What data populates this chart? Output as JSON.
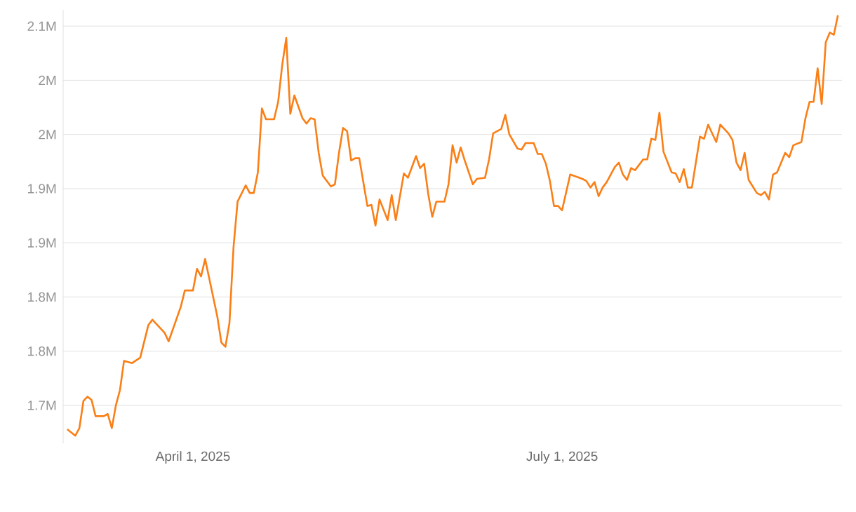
{
  "chart_data": {
    "type": "line",
    "color": "#fa7f16",
    "grid": "y",
    "xlim": [
      "2025-02-28",
      "2025-09-08"
    ],
    "ylim": [
      1.715,
      2.115
    ],
    "xticks": [
      {
        "value": "2025-04-01",
        "label": "April 1, 2025"
      },
      {
        "value": "2025-07-01",
        "label": "July 1, 2025"
      }
    ],
    "yticks": [
      {
        "value": 1.75,
        "label": "1.7M"
      },
      {
        "value": 1.8,
        "label": "1.8M"
      },
      {
        "value": 1.85,
        "label": "1.8M"
      },
      {
        "value": 1.9,
        "label": "1.9M"
      },
      {
        "value": 1.95,
        "label": "1.9M"
      },
      {
        "value": 2.0,
        "label": "2M"
      },
      {
        "value": 2.05,
        "label": "2M"
      },
      {
        "value": 2.1,
        "label": "2.1M"
      }
    ],
    "x": [
      "2025-03-01",
      "2025-03-03",
      "2025-03-04",
      "2025-03-05",
      "2025-03-06",
      "2025-03-07",
      "2025-03-08",
      "2025-03-10",
      "2025-03-11",
      "2025-03-12",
      "2025-03-13",
      "2025-03-14",
      "2025-03-15",
      "2025-03-17",
      "2025-03-19",
      "2025-03-21",
      "2025-03-22",
      "2025-03-25",
      "2025-03-26",
      "2025-03-29",
      "2025-03-30",
      "2025-04-01",
      "2025-04-02",
      "2025-04-03",
      "2025-04-04",
      "2025-04-07",
      "2025-04-08",
      "2025-04-09",
      "2025-04-10",
      "2025-04-11",
      "2025-04-12",
      "2025-04-14",
      "2025-04-15",
      "2025-04-16",
      "2025-04-17",
      "2025-04-18",
      "2025-04-19",
      "2025-04-21",
      "2025-04-22",
      "2025-04-23",
      "2025-04-24",
      "2025-04-25",
      "2025-04-26",
      "2025-04-28",
      "2025-04-29",
      "2025-04-30",
      "2025-05-01",
      "2025-05-02",
      "2025-05-03",
      "2025-05-05",
      "2025-05-06",
      "2025-05-07",
      "2025-05-08",
      "2025-05-09",
      "2025-05-10",
      "2025-05-11",
      "2025-05-12",
      "2025-05-14",
      "2025-05-15",
      "2025-05-16",
      "2025-05-17",
      "2025-05-19",
      "2025-05-20",
      "2025-05-21",
      "2025-05-23",
      "2025-05-24",
      "2025-05-26",
      "2025-05-27",
      "2025-05-28",
      "2025-05-29",
      "2025-05-30",
      "2025-05-31",
      "2025-06-02",
      "2025-06-03",
      "2025-06-04",
      "2025-06-05",
      "2025-06-06",
      "2025-06-07",
      "2025-06-09",
      "2025-06-10",
      "2025-06-12",
      "2025-06-13",
      "2025-06-14",
      "2025-06-16",
      "2025-06-17",
      "2025-06-18",
      "2025-06-20",
      "2025-06-21",
      "2025-06-22",
      "2025-06-24",
      "2025-06-25",
      "2025-06-26",
      "2025-06-27",
      "2025-06-28",
      "2025-06-29",
      "2025-06-30",
      "2025-07-01",
      "2025-07-03",
      "2025-07-06",
      "2025-07-07",
      "2025-07-08",
      "2025-07-09",
      "2025-07-10",
      "2025-07-11",
      "2025-07-12",
      "2025-07-14",
      "2025-07-15",
      "2025-07-16",
      "2025-07-17",
      "2025-07-18",
      "2025-07-19",
      "2025-07-21",
      "2025-07-22",
      "2025-07-23",
      "2025-07-24",
      "2025-07-25",
      "2025-07-26",
      "2025-07-28",
      "2025-07-29",
      "2025-07-30",
      "2025-07-31",
      "2025-08-01",
      "2025-08-02",
      "2025-08-04",
      "2025-08-05",
      "2025-08-06",
      "2025-08-08",
      "2025-08-09",
      "2025-08-11",
      "2025-08-12",
      "2025-08-13",
      "2025-08-14",
      "2025-08-15",
      "2025-08-16",
      "2025-08-18",
      "2025-08-19",
      "2025-08-20",
      "2025-08-21",
      "2025-08-22",
      "2025-08-23",
      "2025-08-25",
      "2025-08-26",
      "2025-08-27",
      "2025-08-29",
      "2025-08-30",
      "2025-08-31",
      "2025-09-01",
      "2025-09-02",
      "2025-09-03",
      "2025-09-04",
      "2025-09-05",
      "2025-09-06",
      "2025-09-07"
    ],
    "values": [
      1.728,
      1.722,
      1.729,
      1.754,
      1.758,
      1.755,
      1.74,
      1.74,
      1.742,
      1.729,
      1.75,
      1.764,
      1.791,
      1.789,
      1.794,
      1.824,
      1.829,
      1.817,
      1.809,
      1.841,
      1.856,
      1.856,
      1.876,
      1.869,
      1.885,
      1.832,
      1.808,
      1.804,
      1.826,
      1.896,
      1.938,
      1.953,
      1.946,
      1.946,
      1.965,
      2.024,
      2.014,
      2.014,
      2.03,
      2.064,
      2.089,
      2.019,
      2.036,
      2.015,
      2.01,
      2.015,
      2.014,
      1.983,
      1.962,
      1.952,
      1.954,
      1.983,
      2.006,
      2.003,
      1.976,
      1.978,
      1.978,
      1.934,
      1.935,
      1.916,
      1.94,
      1.921,
      1.944,
      1.921,
      1.964,
      1.96,
      1.98,
      1.969,
      1.973,
      1.945,
      1.924,
      1.938,
      1.938,
      1.954,
      1.99,
      1.974,
      1.988,
      1.976,
      1.954,
      1.959,
      1.96,
      1.977,
      2.001,
      2.005,
      2.018,
      2.0,
      1.987,
      1.986,
      1.992,
      1.992,
      1.982,
      1.982,
      1.973,
      1.957,
      1.934,
      1.934,
      1.93,
      1.963,
      1.959,
      1.957,
      1.951,
      1.956,
      1.943,
      1.951,
      1.956,
      1.97,
      1.974,
      1.963,
      1.958,
      1.969,
      1.967,
      1.977,
      1.977,
      1.996,
      1.995,
      2.02,
      1.984,
      1.965,
      1.964,
      1.956,
      1.968,
      1.951,
      1.951,
      1.998,
      1.996,
      2.009,
      1.993,
      2.009,
      2.001,
      1.995,
      1.974,
      1.967,
      1.983,
      1.958,
      1.946,
      1.944,
      1.947,
      1.94,
      1.963,
      1.965,
      1.983,
      1.979,
      1.99,
      1.993,
      2.015,
      2.03,
      2.03,
      2.061,
      2.028,
      2.085,
      2.094,
      2.092,
      2.11
    ]
  }
}
